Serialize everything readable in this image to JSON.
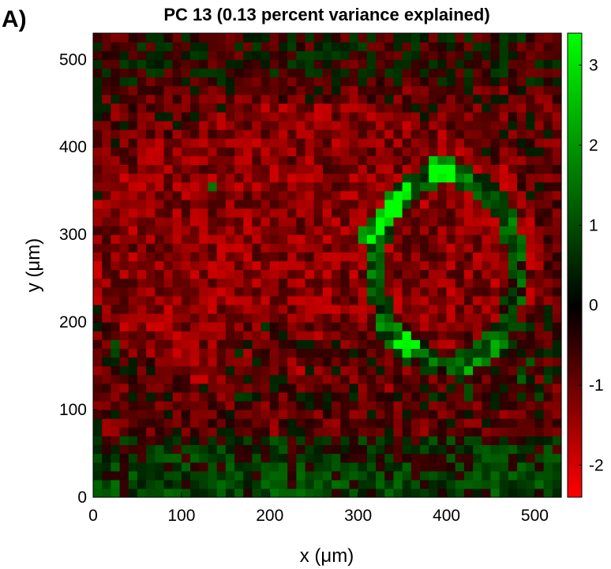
{
  "panel_label": "A)",
  "chart_data": {
    "type": "heatmap",
    "title": "PC 13 (0.13 percent variance explained)",
    "xlabel": "x (μm)",
    "ylabel": "y (μm)",
    "xlim": [
      0,
      530
    ],
    "ylim": [
      0,
      530
    ],
    "x_ticks": [
      0,
      100,
      200,
      300,
      400,
      500
    ],
    "y_ticks": [
      0,
      100,
      200,
      300,
      400,
      500
    ],
    "colorbar": {
      "range": [
        -2.4,
        3.4
      ],
      "ticks": [
        -2,
        -1,
        0,
        1,
        2,
        3
      ],
      "colormap": [
        "#ff0000",
        "#000000",
        "#00ff00"
      ]
    },
    "features": [
      {
        "name": "green-ring",
        "cx": 400,
        "cy": 260,
        "rx": 80,
        "ry": 110
      },
      {
        "name": "green-streak-center",
        "x1": 310,
        "y1": 300,
        "x2": 355,
        "y2": 350
      },
      {
        "name": "green-blob-top-right",
        "cx": 395,
        "cy": 375
      },
      {
        "name": "green-blob-left",
        "cx": 135,
        "cy": 355
      }
    ],
    "grid": false
  }
}
